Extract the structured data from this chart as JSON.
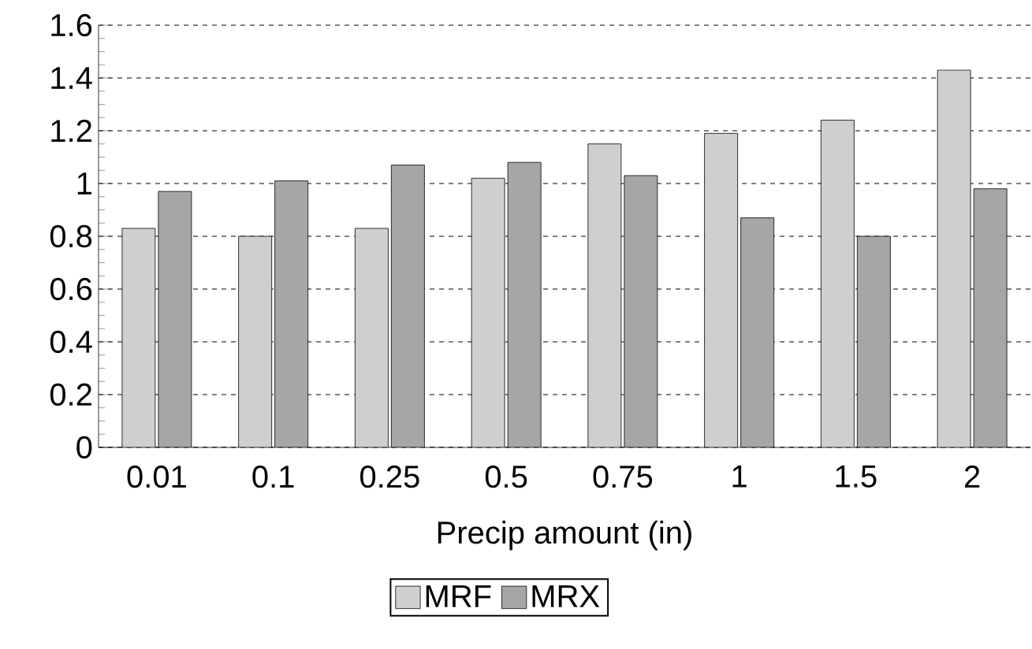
{
  "chart_data": {
    "type": "bar",
    "xlabel": "Precip amount (in)",
    "categories": [
      "0.01",
      "0.1",
      "0.25",
      "0.5",
      "0.75",
      "1",
      "1.5",
      "2"
    ],
    "series": [
      {
        "name": "MRF",
        "color": "#cfcfcf",
        "values": [
          0.83,
          0.8,
          0.83,
          1.02,
          1.15,
          1.19,
          1.24,
          1.43
        ]
      },
      {
        "name": "MRX",
        "color": "#a6a6a6",
        "values": [
          0.97,
          1.01,
          1.07,
          1.08,
          1.03,
          0.87,
          0.8,
          0.98
        ]
      }
    ],
    "ylim": [
      0,
      1.6
    ],
    "yticks": [
      0,
      0.2,
      0.4,
      0.6,
      0.8,
      1,
      1.2,
      1.4,
      1.6
    ],
    "grid": "y",
    "legend": "bottom"
  }
}
